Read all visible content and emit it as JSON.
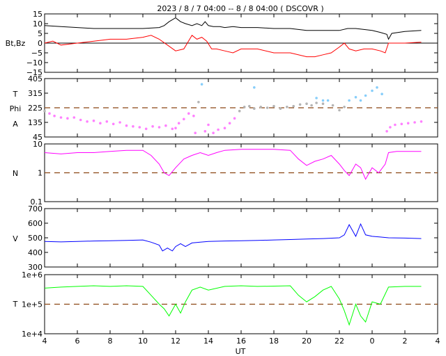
{
  "title": "2023  /  8 /  7  04:00 --  8 /  8   04:00 ( DSCOVR )",
  "x_axis": {
    "label": "UT",
    "range_hours": [
      4,
      28
    ],
    "tick_hours": [
      4,
      6,
      8,
      10,
      12,
      14,
      16,
      18,
      20,
      22,
      24,
      26,
      28
    ],
    "tick_labels": [
      "4",
      "6",
      "8",
      "10",
      "12",
      "14",
      "16",
      "18",
      "20",
      "22",
      "0",
      "2",
      "4"
    ]
  },
  "colors": {
    "bt": "#000000",
    "bz": "#ff0000",
    "phi_near": "#ff80ff",
    "phi_mid": "#b4b4b4",
    "phi_far": "#87cefa",
    "density": "#ff00ff",
    "speed": "#0000ff",
    "temperature": "#00ff00",
    "reference_line": "#8b4513"
  },
  "chart_data": [
    {
      "type": "line",
      "ylabel": "Bt,Bz",
      "ylim": [
        -15,
        15
      ],
      "yticks": [
        15,
        10,
        5,
        0,
        -5,
        -10,
        -15
      ],
      "ytick_labels": [
        "15",
        "10",
        "5",
        "0",
        "−5",
        "−10",
        "−15"
      ],
      "zero_line": 0,
      "series": [
        {
          "name": "Bt",
          "color": "#000000",
          "x": [
            4.0,
            5.0,
            6.0,
            7.0,
            8.0,
            9.0,
            10.0,
            11.0,
            11.3,
            11.6,
            12.0,
            12.3,
            12.6,
            13.0,
            13.3,
            13.6,
            13.8,
            14.0,
            14.3,
            14.7,
            15.0,
            15.5,
            16.0,
            17.0,
            18.0,
            19.0,
            20.0,
            21.0,
            22.0,
            22.5,
            23.0,
            24.0,
            24.5,
            24.9,
            25.0,
            25.2,
            26.0,
            27.0
          ],
          "y": [
            9,
            8.5,
            8,
            7.5,
            7.5,
            7.5,
            7.5,
            8,
            9,
            11,
            13,
            11,
            10,
            9,
            10,
            9,
            11,
            9,
            8.5,
            8.5,
            8,
            8.5,
            8,
            8,
            7.5,
            7.5,
            6.5,
            6.5,
            6.5,
            7.5,
            7.5,
            6.5,
            5.5,
            4.5,
            2,
            5,
            6,
            6.5
          ]
        },
        {
          "name": "Bz",
          "color": "#ff0000",
          "x": [
            4.0,
            4.5,
            5.0,
            6.0,
            7.0,
            8.0,
            9.0,
            10.0,
            10.5,
            11.0,
            11.5,
            12.0,
            12.5,
            13.0,
            13.3,
            13.6,
            13.9,
            14.2,
            14.5,
            15.0,
            15.5,
            16.0,
            17.0,
            18.0,
            19.0,
            20.0,
            20.5,
            21.0,
            21.5,
            22.0,
            22.3,
            22.6,
            23.0,
            23.5,
            24.0,
            24.5,
            24.8,
            25.0,
            25.5,
            26.0,
            27.0
          ],
          "y": [
            0,
            1,
            -1,
            0,
            1,
            2,
            2,
            3,
            4,
            2,
            -1,
            -4,
            -3,
            4,
            2,
            3,
            1,
            -3,
            -3,
            -4,
            -5,
            -3,
            -3,
            -5,
            -5,
            -7,
            -7,
            -6,
            -5,
            -2,
            0,
            -3,
            -4,
            -3,
            -3,
            -4,
            -5,
            0,
            0,
            0,
            0.5
          ]
        }
      ]
    },
    {
      "type": "scatter",
      "ylabels": [
        "T",
        "Phi",
        "A"
      ],
      "ylim": [
        45,
        405
      ],
      "yticks": [
        405,
        315,
        225,
        135,
        45
      ],
      "ytick_labels": [
        "405",
        "315",
        "225",
        "135",
        "45"
      ],
      "reference_line": 225,
      "points": [
        [
          4.0,
          205
        ],
        [
          4.3,
          190
        ],
        [
          4.6,
          175
        ],
        [
          5.0,
          165
        ],
        [
          5.4,
          160
        ],
        [
          5.8,
          165
        ],
        [
          6.2,
          150
        ],
        [
          6.6,
          140
        ],
        [
          7.0,
          145
        ],
        [
          7.4,
          130
        ],
        [
          7.8,
          140
        ],
        [
          8.2,
          125
        ],
        [
          8.6,
          135
        ],
        [
          9.0,
          115
        ],
        [
          9.4,
          110
        ],
        [
          9.8,
          105
        ],
        [
          10.2,
          95
        ],
        [
          10.6,
          110
        ],
        [
          11.0,
          105
        ],
        [
          11.4,
          115
        ],
        [
          11.8,
          95
        ],
        [
          12.2,
          130
        ],
        [
          12.5,
          155
        ],
        [
          12.8,
          190
        ],
        [
          13.1,
          175
        ],
        [
          13.4,
          260
        ],
        [
          13.6,
          370
        ],
        [
          13.8,
          80
        ],
        [
          14.0,
          120
        ],
        [
          14.3,
          70
        ],
        [
          14.6,
          90
        ],
        [
          15.0,
          100
        ],
        [
          15.3,
          130
        ],
        [
          15.6,
          160
        ],
        [
          15.9,
          205
        ],
        [
          16.2,
          230
        ],
        [
          16.5,
          235
        ],
        [
          16.8,
          220
        ],
        [
          17.2,
          230
        ],
        [
          17.6,
          225
        ],
        [
          18.0,
          235
        ],
        [
          18.4,
          220
        ],
        [
          18.8,
          230
        ],
        [
          19.2,
          235
        ],
        [
          19.6,
          245
        ],
        [
          20.0,
          250
        ],
        [
          20.3,
          240
        ],
        [
          20.6,
          255
        ],
        [
          21.0,
          250
        ],
        [
          21.3,
          270
        ],
        [
          21.6,
          240
        ],
        [
          22.0,
          210
        ],
        [
          22.3,
          230
        ],
        [
          22.6,
          270
        ],
        [
          23.0,
          290
        ],
        [
          23.3,
          270
        ],
        [
          23.6,
          300
        ],
        [
          24.0,
          330
        ],
        [
          24.3,
          350
        ],
        [
          24.6,
          310
        ],
        [
          24.9,
          80
        ],
        [
          25.1,
          105
        ],
        [
          25.4,
          120
        ],
        [
          25.8,
          125
        ],
        [
          26.2,
          130
        ],
        [
          26.6,
          135
        ],
        [
          27.0,
          140
        ],
        [
          12.0,
          100
        ],
        [
          13.2,
          70
        ],
        [
          16.8,
          350
        ],
        [
          20.6,
          285
        ],
        [
          21.0,
          270
        ]
      ]
    },
    {
      "type": "line",
      "ylabel": "N",
      "scale": "log",
      "ylim": [
        0.1,
        10
      ],
      "yticks": [
        10,
        1,
        0.1
      ],
      "ytick_labels": [
        "10",
        "1",
        "0.1"
      ],
      "reference_line": 1,
      "series": [
        {
          "name": "N",
          "color": "#ff00ff",
          "x": [
            4.0,
            5.0,
            6.0,
            7.0,
            8.0,
            9.0,
            10.0,
            10.5,
            11.0,
            11.3,
            11.6,
            12.0,
            12.5,
            13.0,
            13.5,
            14.0,
            14.5,
            15.0,
            16.0,
            17.0,
            18.0,
            19.0,
            19.5,
            20.0,
            20.5,
            21.0,
            21.5,
            22.0,
            22.3,
            22.6,
            23.0,
            23.3,
            23.6,
            24.0,
            24.4,
            24.8,
            25.0,
            25.5,
            26.0,
            27.0
          ],
          "y": [
            5,
            4.5,
            5,
            5,
            5.5,
            6,
            6,
            4,
            2,
            1,
            0.8,
            1.5,
            3,
            4,
            5,
            4,
            5,
            6,
            6.5,
            6.5,
            6.5,
            6,
            3,
            1.8,
            2.5,
            3,
            4,
            2,
            1.2,
            0.8,
            2,
            1.5,
            0.6,
            1.5,
            1,
            2,
            5,
            5.5,
            5.5,
            5.5
          ]
        }
      ]
    },
    {
      "type": "line",
      "ylabel": "V",
      "ylim": [
        300,
        700
      ],
      "yticks": [
        700,
        600,
        500,
        400,
        300
      ],
      "ytick_labels": [
        "700",
        "600",
        "500",
        "400",
        "300"
      ],
      "series": [
        {
          "name": "V",
          "color": "#0000ff",
          "x": [
            4.0,
            5.0,
            6.0,
            7.0,
            8.0,
            9.0,
            10.0,
            10.5,
            11.0,
            11.2,
            11.5,
            11.8,
            12.0,
            12.3,
            12.6,
            13.0,
            13.5,
            14.0,
            15.0,
            16.0,
            17.0,
            18.0,
            19.0,
            20.0,
            21.0,
            22.0,
            22.3,
            22.6,
            23.0,
            23.3,
            23.6,
            24.0,
            24.5,
            25.0,
            26.0,
            27.0
          ],
          "y": [
            475,
            472,
            475,
            478,
            480,
            482,
            485,
            470,
            450,
            410,
            430,
            410,
            440,
            460,
            440,
            465,
            470,
            475,
            478,
            480,
            482,
            485,
            488,
            492,
            495,
            500,
            520,
            590,
            510,
            595,
            520,
            510,
            505,
            500,
            498,
            495
          ]
        }
      ]
    },
    {
      "type": "line",
      "ylabel": "T",
      "scale": "log",
      "ylim": [
        10000,
        1000000
      ],
      "yticks": [
        1000000,
        100000,
        10000
      ],
      "ytick_labels": [
        "1e+6",
        "1e+5",
        "1e+4"
      ],
      "reference_line": 100000,
      "series": [
        {
          "name": "T",
          "color": "#00ff00",
          "x": [
            4.0,
            5.0,
            6.0,
            7.0,
            8.0,
            9.0,
            10.0,
            10.5,
            11.0,
            11.3,
            11.6,
            12.0,
            12.3,
            12.6,
            13.0,
            13.5,
            14.0,
            15.0,
            16.0,
            17.0,
            18.0,
            19.0,
            19.5,
            20.0,
            20.5,
            21.0,
            21.5,
            22.0,
            22.3,
            22.6,
            23.0,
            23.3,
            23.6,
            24.0,
            24.5,
            25.0,
            26.0,
            27.0
          ],
          "y": [
            350000,
            380000,
            400000,
            420000,
            400000,
            420000,
            400000,
            200000,
            100000,
            70000,
            40000,
            100000,
            50000,
            120000,
            300000,
            380000,
            300000,
            400000,
            420000,
            400000,
            410000,
            420000,
            200000,
            120000,
            180000,
            300000,
            400000,
            150000,
            60000,
            20000,
            100000,
            40000,
            25000,
            120000,
            100000,
            380000,
            400000,
            400000
          ]
        }
      ]
    }
  ]
}
